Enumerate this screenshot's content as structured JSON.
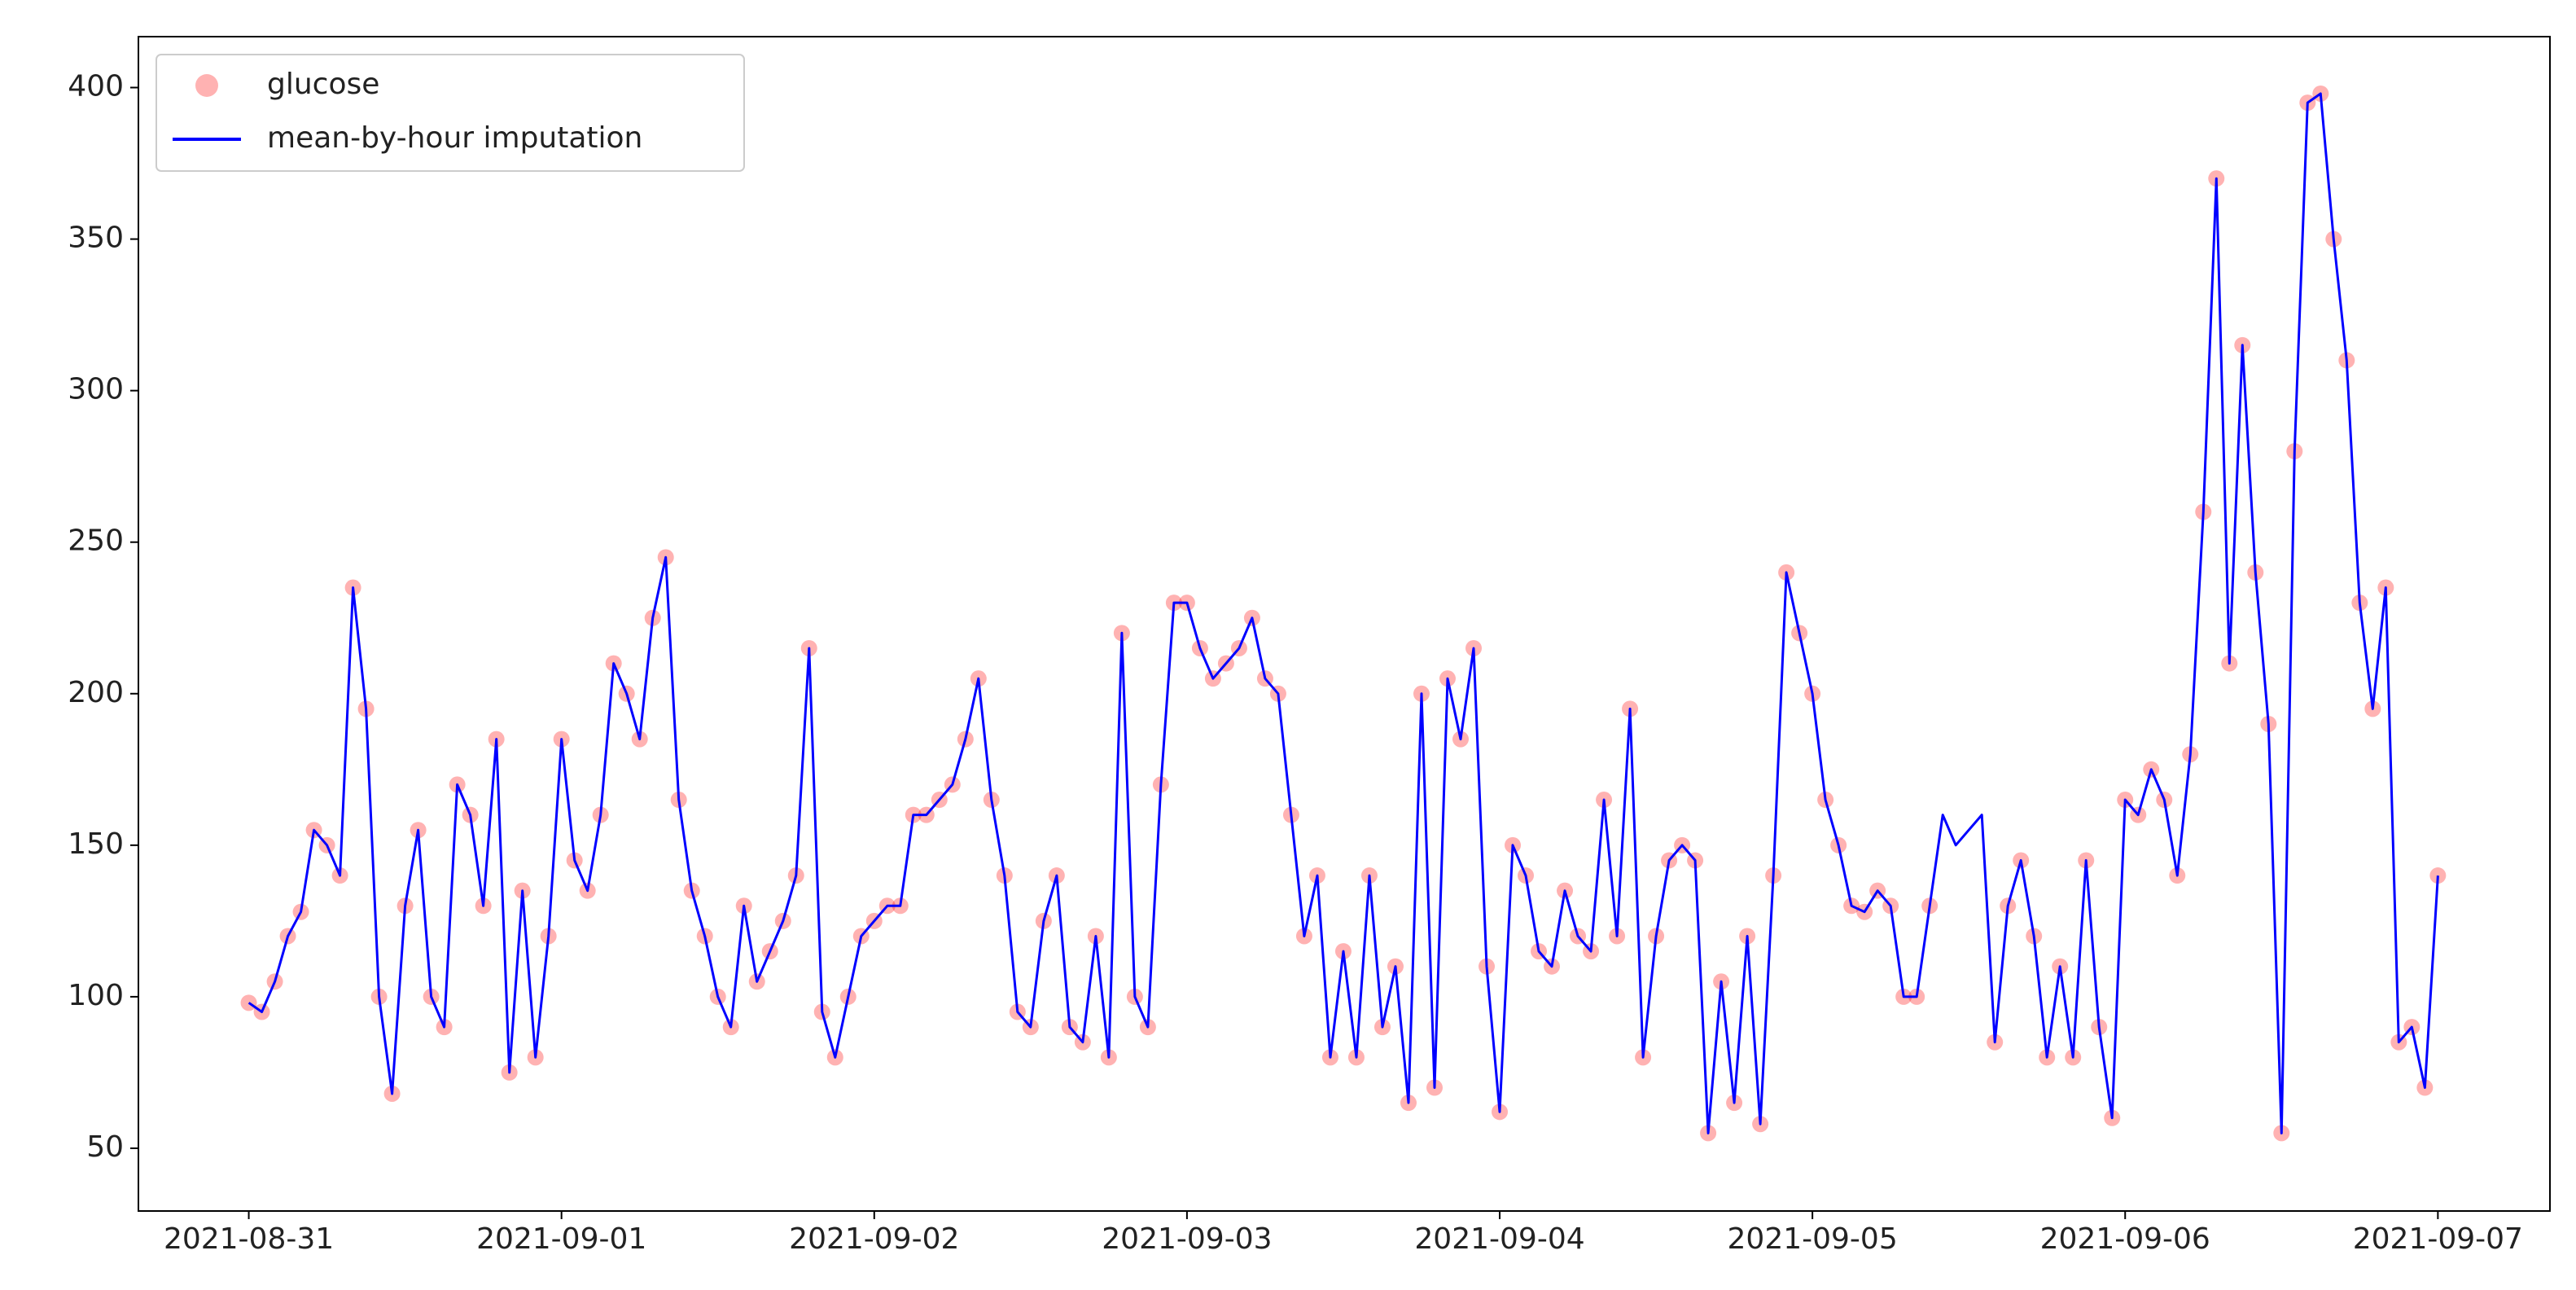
{
  "chart_data": {
    "type": "line",
    "x": [
      0,
      1,
      2,
      3,
      4,
      5,
      6,
      7,
      8,
      9,
      10,
      11,
      12,
      13,
      14,
      15,
      16,
      17,
      18,
      19,
      20,
      21,
      22,
      23,
      24,
      25,
      26,
      27,
      28,
      29,
      30,
      31,
      32,
      33,
      34,
      35,
      36,
      37,
      38,
      39,
      40,
      41,
      42,
      43,
      44,
      45,
      46,
      47,
      48,
      49,
      50,
      51,
      52,
      53,
      54,
      55,
      56,
      57,
      58,
      59,
      60,
      61,
      62,
      63,
      64,
      65,
      66,
      67,
      68,
      69,
      70,
      71,
      72,
      73,
      74,
      75,
      76,
      77,
      78,
      79,
      80,
      81,
      82,
      83,
      84,
      85,
      86,
      87,
      88,
      89,
      90,
      91,
      92,
      93,
      94,
      95,
      96,
      97,
      98,
      99,
      100,
      101,
      102,
      103,
      104,
      105,
      106,
      107,
      108,
      109,
      110,
      111,
      112,
      113,
      114,
      115,
      116,
      117,
      118,
      119,
      120,
      121,
      122,
      123,
      124,
      125,
      126,
      127,
      128,
      129,
      130,
      131,
      132,
      133,
      134,
      135,
      136,
      137,
      138,
      139,
      140,
      141,
      142,
      143,
      144,
      145,
      146,
      147,
      148,
      149,
      150,
      151,
      152,
      153,
      154,
      155,
      156,
      157,
      158,
      159,
      160,
      161,
      162,
      163,
      164,
      165,
      166,
      167,
      168
    ],
    "series": [
      {
        "name": "glucose",
        "mark": "scatter",
        "color": "#ff0000",
        "values": [
          98,
          95,
          105,
          120,
          128,
          155,
          150,
          140,
          235,
          195,
          100,
          68,
          130,
          155,
          100,
          90,
          170,
          160,
          130,
          185,
          75,
          135,
          80,
          120,
          185,
          145,
          135,
          160,
          210,
          200,
          185,
          225,
          245,
          165,
          135,
          120,
          100,
          90,
          130,
          105,
          115,
          125,
          140,
          215,
          95,
          80,
          100,
          120,
          125,
          130,
          130,
          160,
          160,
          165,
          170,
          185,
          205,
          165,
          140,
          95,
          90,
          125,
          140,
          90,
          85,
          120,
          80,
          220,
          100,
          90,
          170,
          230,
          230,
          215,
          205,
          210,
          215,
          225,
          205,
          200,
          160,
          120,
          140,
          80,
          115,
          80,
          140,
          90,
          110,
          65,
          200,
          70,
          205,
          185,
          215,
          110,
          62,
          150,
          140,
          115,
          110,
          135,
          120,
          115,
          165,
          120,
          195,
          80,
          120,
          145,
          150,
          145,
          55,
          105,
          65,
          120,
          58,
          140,
          240,
          220,
          200,
          165,
          150,
          130,
          128,
          135,
          130,
          100,
          100,
          130,
          null,
          null,
          null,
          null,
          85,
          130,
          145,
          120,
          80,
          110,
          80,
          145,
          90,
          60,
          165,
          160,
          175,
          165,
          140,
          180,
          260,
          370,
          210,
          315,
          240,
          190,
          55,
          280,
          395,
          398,
          350,
          310,
          230,
          195,
          235,
          85,
          90,
          70,
          140
        ]
      },
      {
        "name": "mean-by-hour imputation",
        "mark": "line",
        "color": "#0000ff",
        "values": [
          98,
          95,
          105,
          120,
          128,
          155,
          150,
          140,
          235,
          195,
          100,
          68,
          130,
          155,
          100,
          90,
          170,
          160,
          130,
          185,
          75,
          135,
          80,
          120,
          185,
          145,
          135,
          160,
          210,
          200,
          185,
          225,
          245,
          165,
          135,
          120,
          100,
          90,
          130,
          105,
          115,
          125,
          140,
          215,
          95,
          80,
          100,
          120,
          125,
          130,
          130,
          160,
          160,
          165,
          170,
          185,
          205,
          165,
          140,
          95,
          90,
          125,
          140,
          90,
          85,
          120,
          80,
          220,
          100,
          90,
          170,
          230,
          230,
          215,
          205,
          210,
          215,
          225,
          205,
          200,
          160,
          120,
          140,
          80,
          115,
          80,
          140,
          90,
          110,
          65,
          200,
          70,
          205,
          185,
          215,
          110,
          62,
          150,
          140,
          115,
          110,
          135,
          120,
          115,
          165,
          120,
          195,
          80,
          120,
          145,
          150,
          145,
          55,
          105,
          65,
          120,
          58,
          140,
          240,
          220,
          200,
          165,
          150,
          130,
          128,
          135,
          130,
          100,
          100,
          130,
          160,
          150,
          155,
          160,
          85,
          130,
          145,
          120,
          80,
          110,
          80,
          145,
          90,
          60,
          165,
          160,
          175,
          165,
          140,
          180,
          260,
          370,
          210,
          315,
          240,
          190,
          55,
          280,
          395,
          398,
          350,
          310,
          230,
          195,
          235,
          85,
          90,
          70,
          140
        ]
      }
    ],
    "xlim": [
      -8.47,
      176.6
    ],
    "xticks": [
      {
        "value": 0,
        "label": "2021-08-31"
      },
      {
        "value": 24,
        "label": "2021-09-01"
      },
      {
        "value": 48,
        "label": "2021-09-02"
      },
      {
        "value": 72,
        "label": "2021-09-03"
      },
      {
        "value": 96,
        "label": "2021-09-04"
      },
      {
        "value": 120,
        "label": "2021-09-05"
      },
      {
        "value": 144,
        "label": "2021-09-06"
      },
      {
        "value": 168,
        "label": "2021-09-07"
      }
    ],
    "ylim": [
      29.3,
      416.8
    ],
    "yticks": [
      50,
      100,
      150,
      200,
      250,
      300,
      350,
      400
    ],
    "legend": "upper left"
  }
}
